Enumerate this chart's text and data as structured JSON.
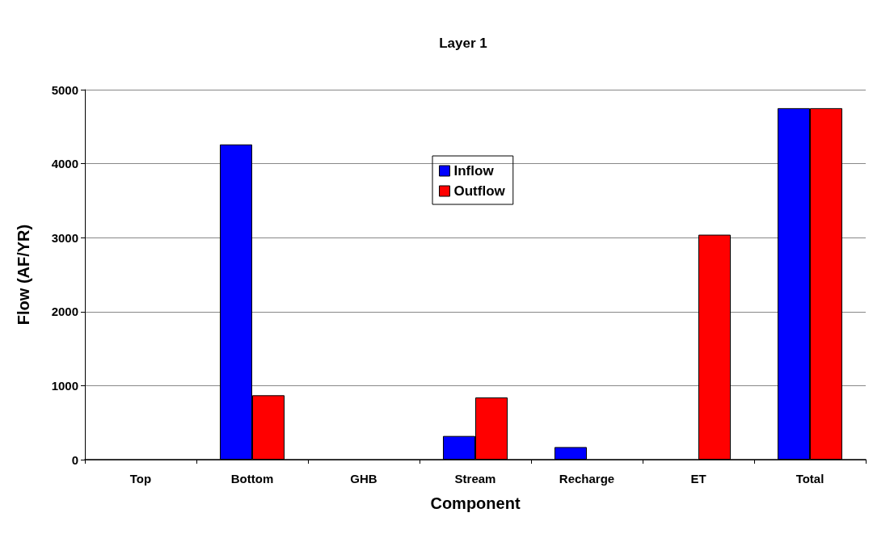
{
  "chart_data": {
    "type": "bar",
    "title": "Layer 1",
    "xlabel": "Component",
    "ylabel": "Flow (AF/YR)",
    "categories": [
      "Top",
      "Bottom",
      "GHB",
      "Stream",
      "Recharge",
      "ET",
      "Total"
    ],
    "series": [
      {
        "name": "Inflow",
        "color": "#0000ff",
        "values": [
          0,
          4260,
          0,
          320,
          170,
          0,
          4750
        ]
      },
      {
        "name": "Outflow",
        "color": "#ff0000",
        "values": [
          0,
          870,
          0,
          840,
          0,
          3040,
          4750
        ]
      }
    ],
    "ylim": [
      0,
      5000
    ],
    "yticks": [
      0,
      1000,
      2000,
      3000,
      4000,
      5000
    ],
    "grid": "y",
    "legend": "top"
  }
}
